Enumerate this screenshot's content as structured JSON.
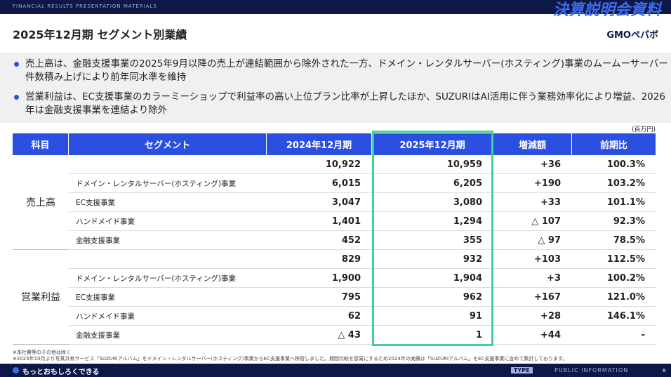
{
  "header": {
    "eyebrow": "FINANCIAL RESULTS PRESENTATION MATERIALS",
    "badge": "決算説明会資料",
    "title": "2025年12月期 セグメント別業績",
    "logo": "GMOペパボ"
  },
  "bullets": [
    "売上高は、金融支援事業の2025年9月以降の売上が連結範囲から除外された一方、ドメイン・レンタルサーバー(ホスティング)事業のムームーサーバー件数積み上げにより前年同水準を維持",
    "営業利益は、EC支援事業のカラーミーショップで利益率の高い上位プラン比率が上昇したほか、SUZURIはAI活用に伴う業務効率化により増益、2026年は金融支援事業を連結より除外"
  ],
  "table": {
    "unit": "(百万円)",
    "columns": [
      "科目",
      "セグメント",
      "2024年12月期",
      "2025年12月期",
      "増減額",
      "前期比"
    ],
    "groups": [
      {
        "label": "売上高",
        "rows": [
          {
            "values": [
              "10,922",
              "10,959",
              "+36",
              "100.3%"
            ]
          },
          {
            "segment": "ドメイン・レンタルサーバー(ホスティング)事業",
            "values": [
              "6,015",
              "6,205",
              "+190",
              "103.2%"
            ]
          },
          {
            "segment": "EC支援事業",
            "values": [
              "3,047",
              "3,080",
              "+33",
              "101.1%"
            ]
          },
          {
            "segment": "ハンドメイド事業",
            "values": [
              "1,401",
              "1,294",
              "△ 107",
              "92.3%"
            ]
          },
          {
            "segment": "金融支援事業",
            "values": [
              "452",
              "355",
              "△ 97",
              "78.5%"
            ]
          }
        ]
      },
      {
        "label": "営業利益",
        "rows": [
          {
            "values": [
              "829",
              "932",
              "+103",
              "112.5%"
            ]
          },
          {
            "segment": "ドメイン・レンタルサーバー(ホスティング)事業",
            "values": [
              "1,900",
              "1,904",
              "+3",
              "100.2%"
            ]
          },
          {
            "segment": "EC支援事業",
            "values": [
              "795",
              "962",
              "+167",
              "121.0%"
            ]
          },
          {
            "segment": "ハンドメイド事業",
            "values": [
              "62",
              "91",
              "+28",
              "146.1%"
            ]
          },
          {
            "segment": "金融支援事業",
            "values": [
              "△ 43",
              "1",
              "+44",
              "-"
            ]
          }
        ]
      }
    ]
  },
  "footnotes": [
    "※本社費等のその他は除く",
    "※2025年10月より写真共有サービス「SUZURIアルバム」をドメイン・レンタルサーバー(ホスティング)事業からEC支援事業へ移管しました。期間比較を容易にするため2024年の実績は「SUZURIアルバム」をEC支援事業に含めて集計しております。"
  ],
  "footer": {
    "tagline": "もっとおもしろくできる",
    "tag": "TYPE",
    "classification": "PUBLIC INFORMATION",
    "page": "8"
  }
}
